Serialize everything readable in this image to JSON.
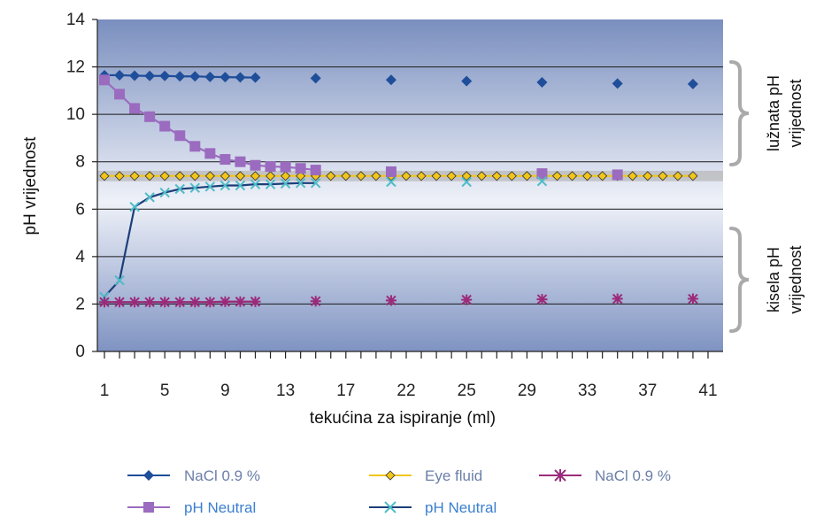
{
  "chart_data": {
    "type": "line",
    "xlabel": "tekućina za ispiranje (ml)",
    "ylabel": "pH vrijednost",
    "ylim": [
      0,
      14
    ],
    "yticks": [
      "0",
      "2",
      "4",
      "6",
      "8",
      "10",
      "12",
      "14"
    ],
    "xlim": [
      1,
      41
    ],
    "xticks": [
      "1",
      "5",
      "9",
      "13",
      "17",
      "22",
      "25",
      "29",
      "33",
      "37",
      "41"
    ],
    "grid": true,
    "background": "blue-gradient",
    "annotations": [
      {
        "line1": "lužnata pH",
        "line2": "vrijednost",
        "range": [
          7.5,
          12.5
        ]
      },
      {
        "line1": "kisela pH",
        "line2": "vrijednost",
        "range": [
          1.7,
          5.2
        ]
      }
    ],
    "series": [
      {
        "name": "NaCl 0.9 %",
        "color": "#1f4e9a",
        "marker": "diamond",
        "line": true,
        "legend_color": "#6b7fa8",
        "x": [
          1,
          2,
          3,
          4,
          5,
          6,
          7,
          8,
          9,
          10,
          11,
          15,
          20,
          25,
          30,
          35,
          40
        ],
        "y": [
          11.65,
          11.65,
          11.63,
          11.62,
          11.62,
          11.6,
          11.6,
          11.58,
          11.57,
          11.56,
          11.55,
          11.52,
          11.45,
          11.4,
          11.35,
          11.3,
          11.28
        ]
      },
      {
        "name": "pH Neutral",
        "color": "#9b6bbf",
        "marker": "square",
        "line": true,
        "legend_color": "#3a7fd0",
        "x": [
          1,
          2,
          3,
          4,
          5,
          6,
          7,
          8,
          9,
          10,
          11,
          12,
          13,
          14,
          15,
          20,
          30,
          35
        ],
        "y": [
          11.45,
          10.85,
          10.25,
          9.9,
          9.5,
          9.1,
          8.65,
          8.35,
          8.1,
          8.0,
          7.85,
          7.8,
          7.78,
          7.72,
          7.65,
          7.58,
          7.5,
          7.45
        ]
      },
      {
        "name": "Eye fluid",
        "color": "#f2c618",
        "marker": "diamond-yellow",
        "line": true,
        "legend_color": "#6b7fa8",
        "x": [
          1,
          2,
          3,
          4,
          5,
          6,
          7,
          8,
          9,
          10,
          11,
          12,
          13,
          14,
          15,
          16,
          17,
          18,
          19,
          20,
          21,
          22,
          23,
          24,
          25,
          26,
          27,
          28,
          29,
          30,
          31,
          32,
          33,
          34,
          35,
          36,
          37,
          38,
          39,
          40
        ],
        "y": [
          7.4,
          7.4,
          7.4,
          7.4,
          7.4,
          7.4,
          7.4,
          7.4,
          7.4,
          7.4,
          7.4,
          7.4,
          7.4,
          7.4,
          7.4,
          7.4,
          7.4,
          7.4,
          7.4,
          7.4,
          7.4,
          7.4,
          7.4,
          7.4,
          7.4,
          7.4,
          7.4,
          7.4,
          7.4,
          7.4,
          7.4,
          7.4,
          7.4,
          7.4,
          7.4,
          7.4,
          7.4,
          7.4,
          7.4,
          7.4
        ]
      },
      {
        "name": "pH Neutral",
        "color": "#4fbcc8",
        "marker": "x",
        "line": true,
        "line_color": "#1c3f7a",
        "legend_color": "#3a7fd0",
        "x": [
          1,
          2,
          3,
          4,
          5,
          6,
          7,
          8,
          9,
          10,
          11,
          12,
          13,
          14,
          15,
          20,
          25,
          30
        ],
        "y": [
          2.3,
          3.0,
          6.1,
          6.5,
          6.7,
          6.85,
          6.9,
          6.95,
          7.0,
          7.0,
          7.05,
          7.05,
          7.08,
          7.1,
          7.1,
          7.15,
          7.15,
          7.18
        ]
      },
      {
        "name": "NaCl 0.9 %",
        "color": "#9b2a7a",
        "marker": "star",
        "line": true,
        "legend_color": "#6b7fa8",
        "x": [
          1,
          2,
          3,
          4,
          5,
          6,
          7,
          8,
          9,
          10,
          11,
          15,
          20,
          25,
          30,
          35,
          40
        ],
        "y": [
          2.08,
          2.08,
          2.08,
          2.08,
          2.08,
          2.08,
          2.08,
          2.08,
          2.1,
          2.1,
          2.1,
          2.12,
          2.15,
          2.18,
          2.2,
          2.22,
          2.22
        ]
      }
    ]
  }
}
